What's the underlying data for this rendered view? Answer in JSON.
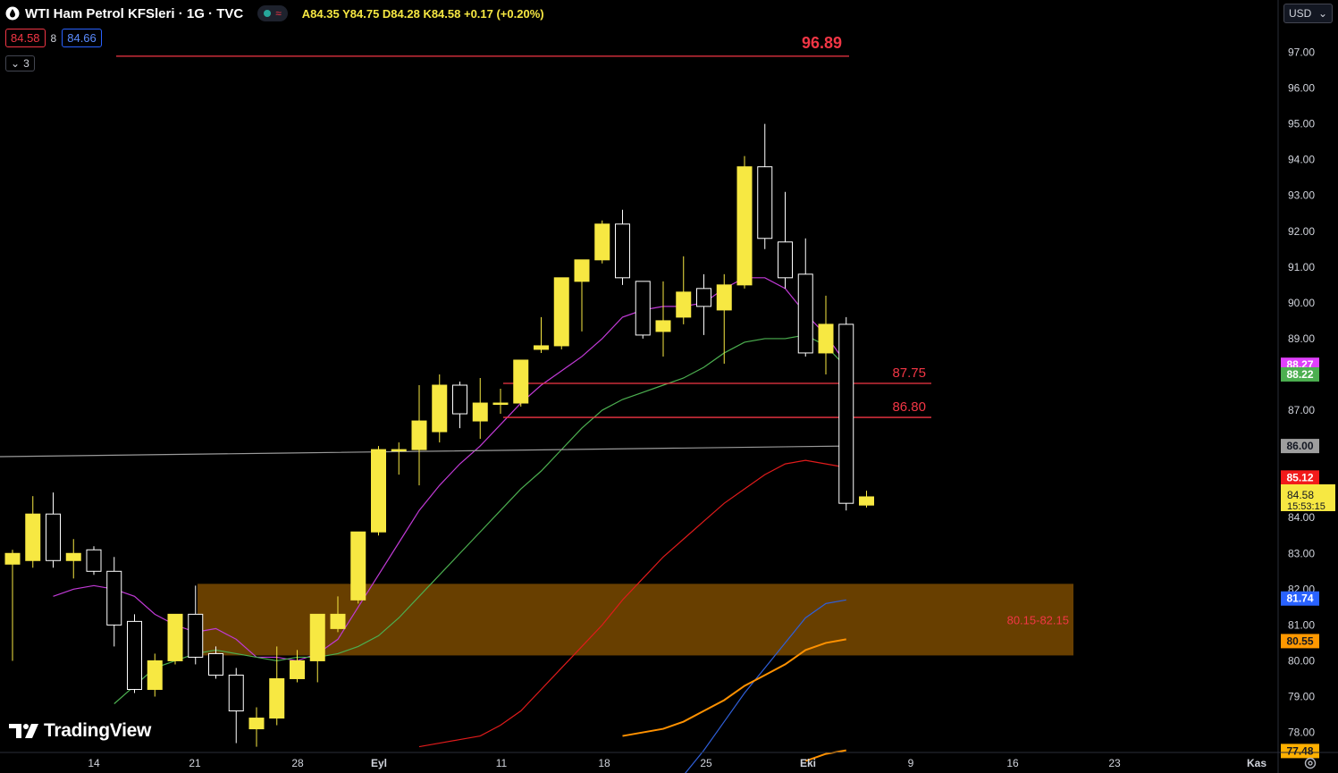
{
  "header": {
    "symbol": "WTI Ham Petrol KFSleri · 1G · TVC",
    "ohlc": "A84.35 Y84.75 D84.28 K84.58 +0.17 (+0.20%)",
    "bid": "84.58",
    "spread": "8",
    "ask": "84.66",
    "indicator_count": "3"
  },
  "currency": "USD",
  "brand": "TradingView",
  "colors": {
    "background": "#000000",
    "bull_candle": "#f7e842",
    "bear_candle": "#000000",
    "candle_outline": "#ffffff",
    "ma_magenta": "#c13ad6",
    "ma_green": "#4caf50",
    "ma_red": "#e01b1b",
    "ma_blue": "#2f5fd9",
    "ma_orange": "#ff9100",
    "ma_gray": "#9a9a9a",
    "level_line": "#f23645",
    "zone_fill": "#7a4a00"
  },
  "chart_data": {
    "type": "candlestick",
    "x_ticks": [
      "14",
      "21",
      "28",
      "Eyl",
      "11",
      "18",
      "25",
      "Eki",
      "9",
      "16",
      "23",
      "Kas"
    ],
    "y_ticks": [
      "97.00",
      "96.00",
      "95.00",
      "94.00",
      "93.00",
      "92.00",
      "91.00",
      "90.00",
      "89.00",
      "88.00",
      "87.00",
      "86.00",
      "85.00",
      "84.00",
      "83.00",
      "82.00",
      "81.00",
      "80.00",
      "79.00",
      "78.00"
    ],
    "ylim": [
      77.2,
      98.2
    ],
    "candles": [
      {
        "o": 82.7,
        "h": 83.1,
        "l": 80.0,
        "c": 83.0
      },
      {
        "o": 82.8,
        "h": 84.6,
        "l": 82.6,
        "c": 84.1
      },
      {
        "o": 84.1,
        "h": 84.7,
        "l": 82.6,
        "c": 82.8
      },
      {
        "o": 82.8,
        "h": 83.4,
        "l": 82.3,
        "c": 83.0
      },
      {
        "o": 83.1,
        "h": 83.2,
        "l": 82.4,
        "c": 82.5
      },
      {
        "o": 82.5,
        "h": 82.9,
        "l": 80.4,
        "c": 81.0
      },
      {
        "o": 81.1,
        "h": 81.3,
        "l": 79.1,
        "c": 79.2
      },
      {
        "o": 79.2,
        "h": 80.2,
        "l": 79.0,
        "c": 80.0
      },
      {
        "o": 80.0,
        "h": 81.3,
        "l": 79.9,
        "c": 81.3
      },
      {
        "o": 81.3,
        "h": 82.1,
        "l": 79.9,
        "c": 80.1
      },
      {
        "o": 80.2,
        "h": 80.4,
        "l": 79.5,
        "c": 79.6
      },
      {
        "o": 79.6,
        "h": 79.8,
        "l": 77.7,
        "c": 78.6
      },
      {
        "o": 78.1,
        "h": 78.7,
        "l": 77.6,
        "c": 78.4
      },
      {
        "o": 78.4,
        "h": 80.4,
        "l": 78.2,
        "c": 79.5
      },
      {
        "o": 79.5,
        "h": 80.3,
        "l": 79.4,
        "c": 80.0
      },
      {
        "o": 80.0,
        "h": 81.3,
        "l": 79.4,
        "c": 81.3
      },
      {
        "o": 80.9,
        "h": 81.8,
        "l": 80.8,
        "c": 81.3
      },
      {
        "o": 81.7,
        "h": 83.6,
        "l": 81.6,
        "c": 83.6
      },
      {
        "o": 83.6,
        "h": 86.0,
        "l": 83.5,
        "c": 85.9
      },
      {
        "o": 85.9,
        "h": 86.1,
        "l": 85.2,
        "c": 85.9
      },
      {
        "o": 85.9,
        "h": 87.7,
        "l": 84.9,
        "c": 86.7
      },
      {
        "o": 86.4,
        "h": 88.0,
        "l": 86.1,
        "c": 87.7
      },
      {
        "o": 87.7,
        "h": 87.8,
        "l": 86.5,
        "c": 86.9
      },
      {
        "o": 86.7,
        "h": 87.9,
        "l": 86.2,
        "c": 87.2
      },
      {
        "o": 87.2,
        "h": 87.6,
        "l": 86.9,
        "c": 87.2
      },
      {
        "o": 87.2,
        "h": 88.4,
        "l": 87.1,
        "c": 88.4
      },
      {
        "o": 88.7,
        "h": 89.6,
        "l": 88.6,
        "c": 88.8
      },
      {
        "o": 88.8,
        "h": 90.7,
        "l": 88.7,
        "c": 90.7
      },
      {
        "o": 90.6,
        "h": 91.2,
        "l": 89.2,
        "c": 91.2
      },
      {
        "o": 91.2,
        "h": 92.3,
        "l": 91.1,
        "c": 92.2
      },
      {
        "o": 92.2,
        "h": 92.6,
        "l": 90.5,
        "c": 90.7
      },
      {
        "o": 90.6,
        "h": 90.6,
        "l": 89.0,
        "c": 89.1
      },
      {
        "o": 89.2,
        "h": 90.6,
        "l": 88.5,
        "c": 89.5
      },
      {
        "o": 89.6,
        "h": 91.3,
        "l": 89.4,
        "c": 90.3
      },
      {
        "o": 90.4,
        "h": 90.8,
        "l": 89.1,
        "c": 89.9
      },
      {
        "o": 89.8,
        "h": 90.8,
        "l": 88.3,
        "c": 90.5
      },
      {
        "o": 90.5,
        "h": 94.1,
        "l": 90.4,
        "c": 93.8
      },
      {
        "o": 93.8,
        "h": 95.0,
        "l": 91.5,
        "c": 91.8
      },
      {
        "o": 91.7,
        "h": 93.1,
        "l": 90.4,
        "c": 90.7
      },
      {
        "o": 90.8,
        "h": 91.8,
        "l": 88.5,
        "c": 88.6
      },
      {
        "o": 88.6,
        "h": 90.2,
        "l": 88.0,
        "c": 89.4
      },
      {
        "o": 89.4,
        "h": 89.6,
        "l": 84.2,
        "c": 84.4
      },
      {
        "o": 84.35,
        "h": 84.75,
        "l": 84.28,
        "c": 84.58
      }
    ],
    "moving_averages": [
      {
        "color": "#c13ad6",
        "current": 88.27,
        "values": [
          81.8,
          82.0,
          82.1,
          82.0,
          81.8,
          81.3,
          81.0,
          80.8,
          80.9,
          80.6,
          80.1,
          80.1,
          80.0,
          80.2,
          80.6,
          81.5,
          82.4,
          83.3,
          84.2,
          84.9,
          85.5,
          86.0,
          86.6,
          87.2,
          87.7,
          88.1,
          88.5,
          89.0,
          89.6,
          89.8,
          89.9,
          89.9,
          90.0,
          90.4,
          90.7,
          90.7,
          90.4,
          89.7,
          89.1,
          88.3
        ]
      },
      {
        "color": "#4caf50",
        "current": 88.22,
        "values": [
          78.8,
          79.3,
          79.8,
          80.0,
          80.2,
          80.3,
          80.2,
          80.1,
          80.0,
          80.1,
          80.1,
          80.2,
          80.4,
          80.7,
          81.2,
          81.8,
          82.4,
          83.0,
          83.6,
          84.2,
          84.8,
          85.3,
          85.9,
          86.5,
          87.0,
          87.3,
          87.5,
          87.7,
          87.9,
          88.2,
          88.6,
          88.9,
          89.0,
          89.0,
          89.1,
          88.8,
          88.2
        ]
      },
      {
        "color": "#e01b1b",
        "current": 85.12,
        "values": [
          77.6,
          77.7,
          77.8,
          77.9,
          78.2,
          78.6,
          79.2,
          79.8,
          80.4,
          81.0,
          81.7,
          82.3,
          82.9,
          83.4,
          83.9,
          84.4,
          84.8,
          85.2,
          85.5,
          85.6,
          85.5,
          85.4
        ]
      },
      {
        "color": "#2f5fd9",
        "current": 81.74,
        "values": [
          76.8,
          77.5,
          78.3,
          79.1,
          79.8,
          80.5,
          81.2,
          81.6,
          81.7
        ]
      },
      {
        "color": "#ff9100",
        "current": 80.55,
        "values": [
          77.9,
          78.0,
          78.1,
          78.3,
          78.6,
          78.9,
          79.3,
          79.6,
          79.9,
          80.3,
          80.5,
          80.6
        ]
      },
      {
        "color": "#ff9100",
        "current": 77.48,
        "values": [
          77.2,
          77.4,
          77.5
        ]
      },
      {
        "color": "#9a9a9a",
        "current": 86.0,
        "values": [
          85.7,
          85.8,
          85.9,
          86.0
        ]
      }
    ],
    "levels": [
      {
        "value": 96.89,
        "label": "96.89"
      },
      {
        "value": 87.75,
        "label": "87.75"
      },
      {
        "value": 86.8,
        "label": "86.80"
      }
    ],
    "zone": {
      "low": 80.15,
      "high": 82.15,
      "label": "80.15-82.15"
    },
    "price_badges": [
      {
        "label": "88.27",
        "value": 88.27,
        "color": "#e040fb",
        "text_color": "#ffffff"
      },
      {
        "label": "88.22",
        "value": 88.0,
        "color": "#4caf50",
        "text_color": "#ffffff"
      },
      {
        "label": "86.00",
        "value": 86.0,
        "color": "#9e9e9e",
        "text_color": "#131722"
      },
      {
        "label": "85.12",
        "value": 85.12,
        "color": "#f21a1a",
        "text_color": "#ffffff"
      },
      {
        "label": "81.74",
        "value": 81.74,
        "color": "#2962ff",
        "text_color": "#ffffff"
      },
      {
        "label": "80.55",
        "value": 80.55,
        "color": "#ff9800",
        "text_color": "#131722"
      },
      {
        "label": "77.48",
        "value": 77.48,
        "color": "#ffb000",
        "text_color": "#131722"
      }
    ],
    "last_price": {
      "label": "84.58",
      "countdown": "15:53:15",
      "value": 84.58
    }
  }
}
